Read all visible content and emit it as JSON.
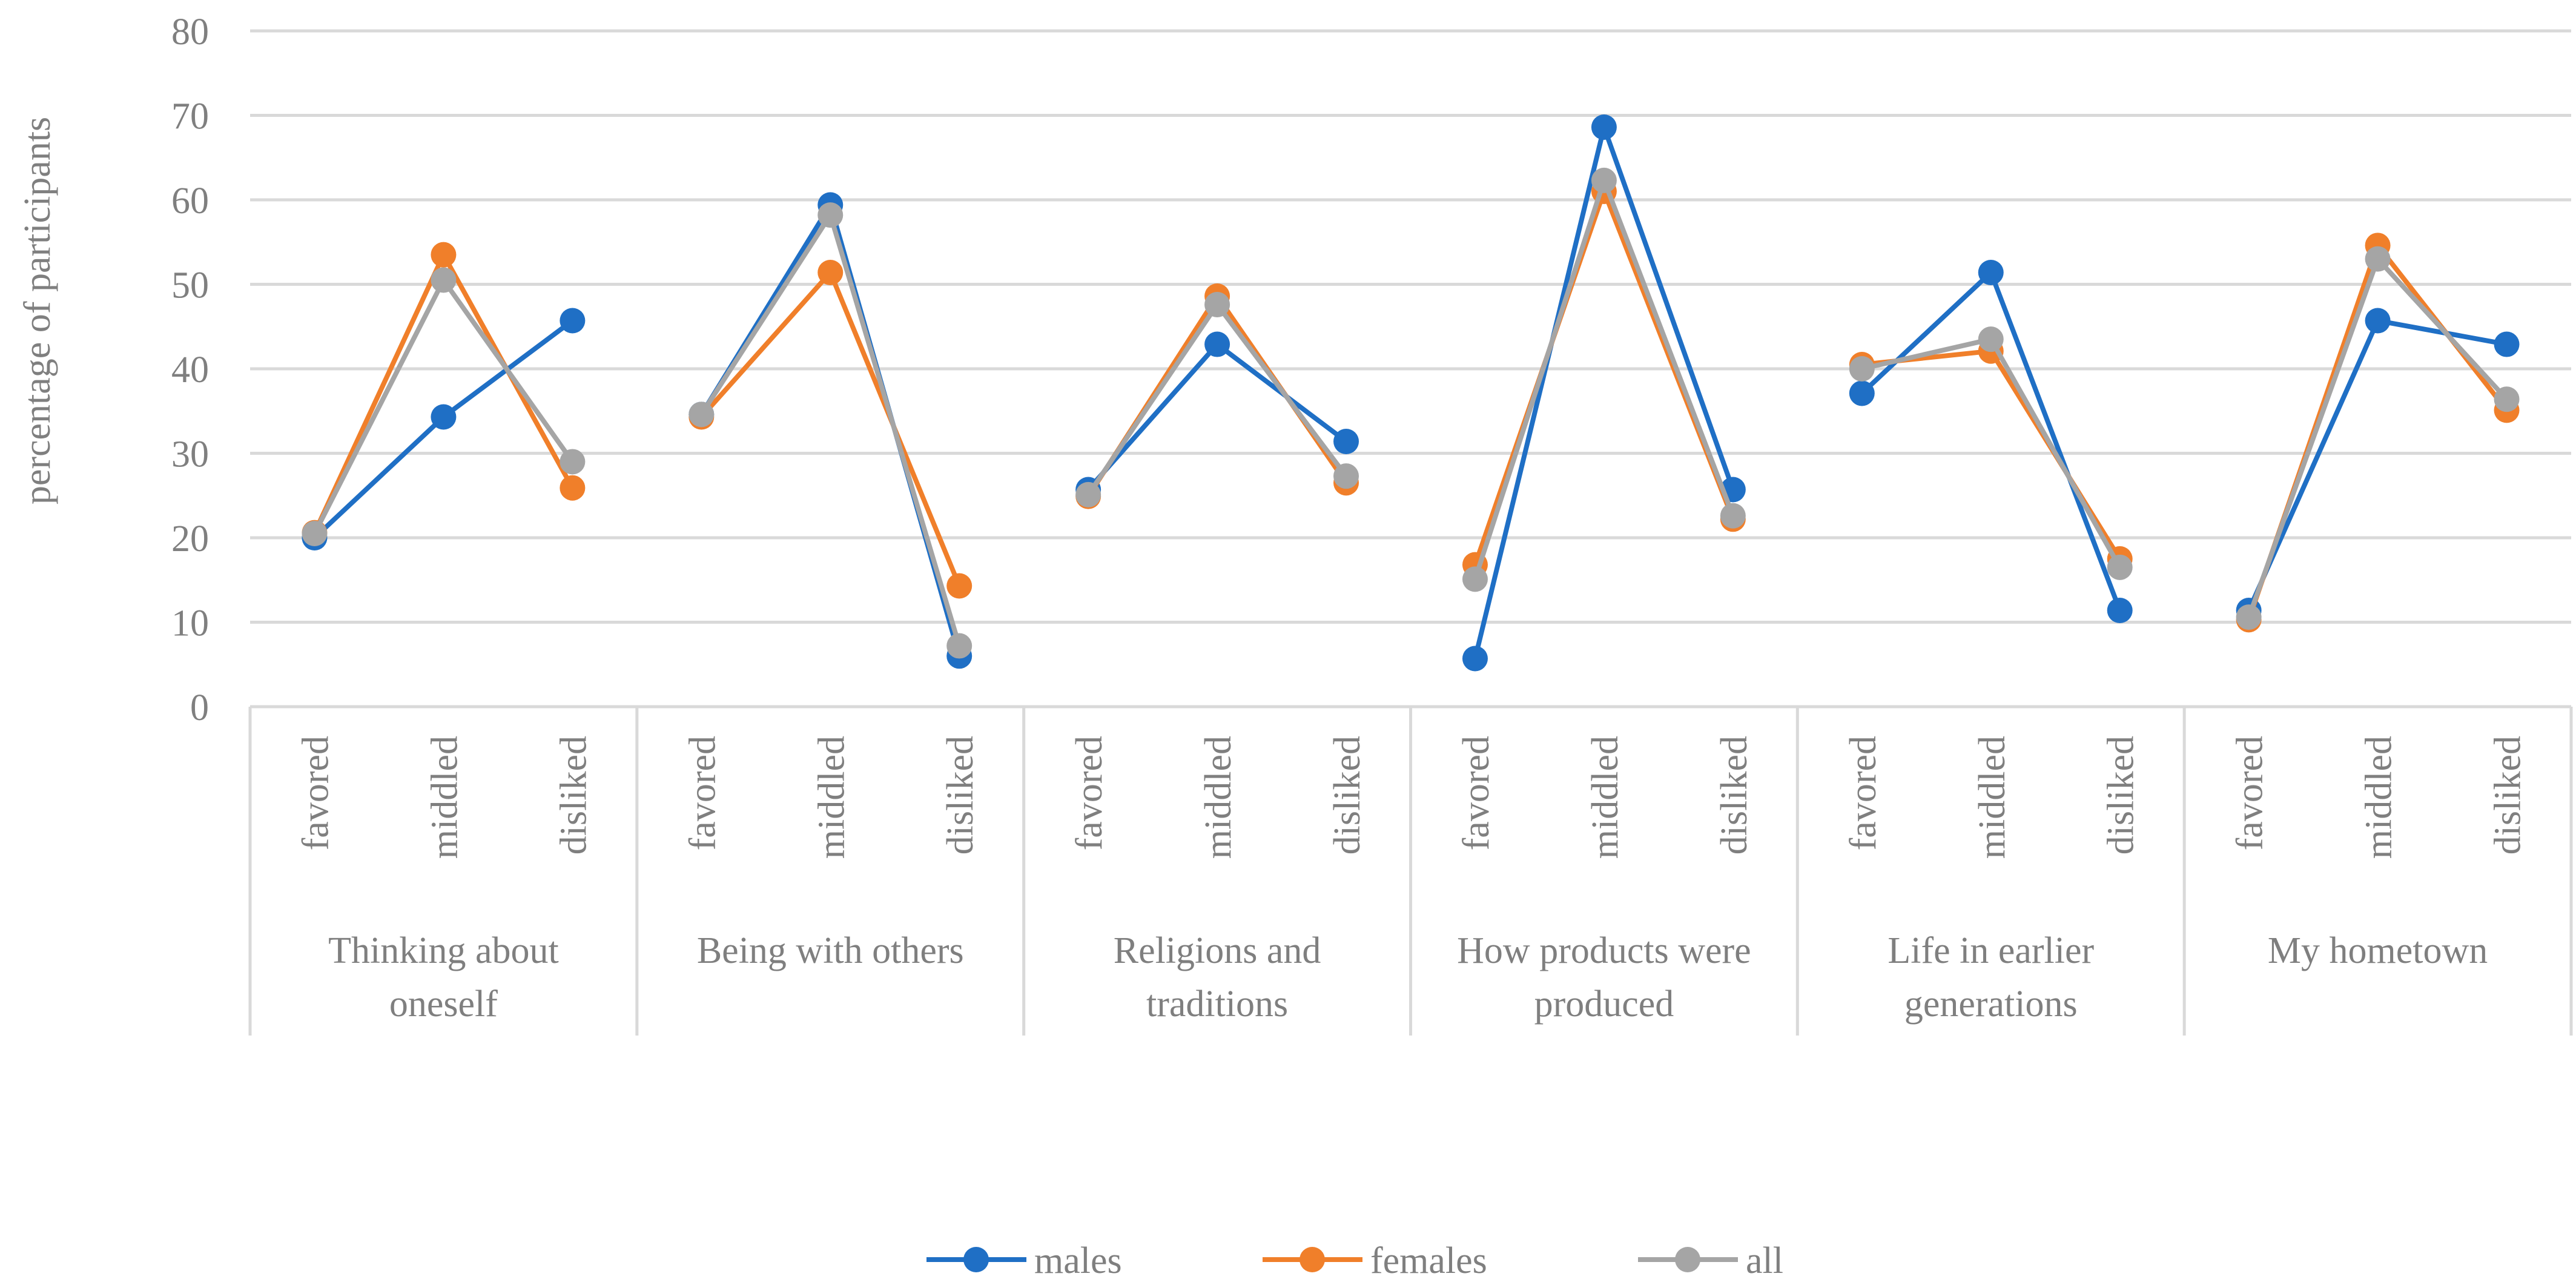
{
  "chart_data": {
    "type": "line",
    "title": "",
    "ylabel": "percentage of participants",
    "xlabel": "",
    "ylim": [
      0,
      80
    ],
    "yticks": [
      0,
      10,
      20,
      30,
      40,
      50,
      60,
      70,
      80
    ],
    "grid": true,
    "legend_position": "bottom",
    "levels": [
      "favored",
      "middled",
      "disliked"
    ],
    "groups": [
      "Thinking about oneself",
      "Being with others",
      "Religions and traditions",
      "How products were produced",
      "Life in earlier generations",
      "My hometown"
    ],
    "series": [
      {
        "name": "males",
        "color": "#1f6fc5",
        "values": [
          [
            20.0,
            34.3,
            45.7
          ],
          [
            34.6,
            59.4,
            6.0
          ],
          [
            25.7,
            42.9,
            31.4
          ],
          [
            5.7,
            68.6,
            25.7
          ],
          [
            37.1,
            51.4,
            11.4
          ],
          [
            11.4,
            45.7,
            42.9
          ]
        ]
      },
      {
        "name": "females",
        "color": "#f07f2a",
        "values": [
          [
            20.6,
            53.5,
            25.9
          ],
          [
            34.3,
            51.4,
            14.3
          ],
          [
            24.9,
            48.6,
            26.5
          ],
          [
            16.8,
            61.0,
            22.2
          ],
          [
            40.5,
            42.1,
            17.5
          ],
          [
            10.3,
            54.6,
            35.1
          ]
        ]
      },
      {
        "name": "all",
        "color": "#a5a5a5",
        "values": [
          [
            20.5,
            50.5,
            29.0
          ],
          [
            34.6,
            58.2,
            7.2
          ],
          [
            25.1,
            47.6,
            27.3
          ],
          [
            15.1,
            62.3,
            22.6
          ],
          [
            40.0,
            43.5,
            16.5
          ],
          [
            10.6,
            53.0,
            36.4
          ]
        ]
      }
    ]
  }
}
